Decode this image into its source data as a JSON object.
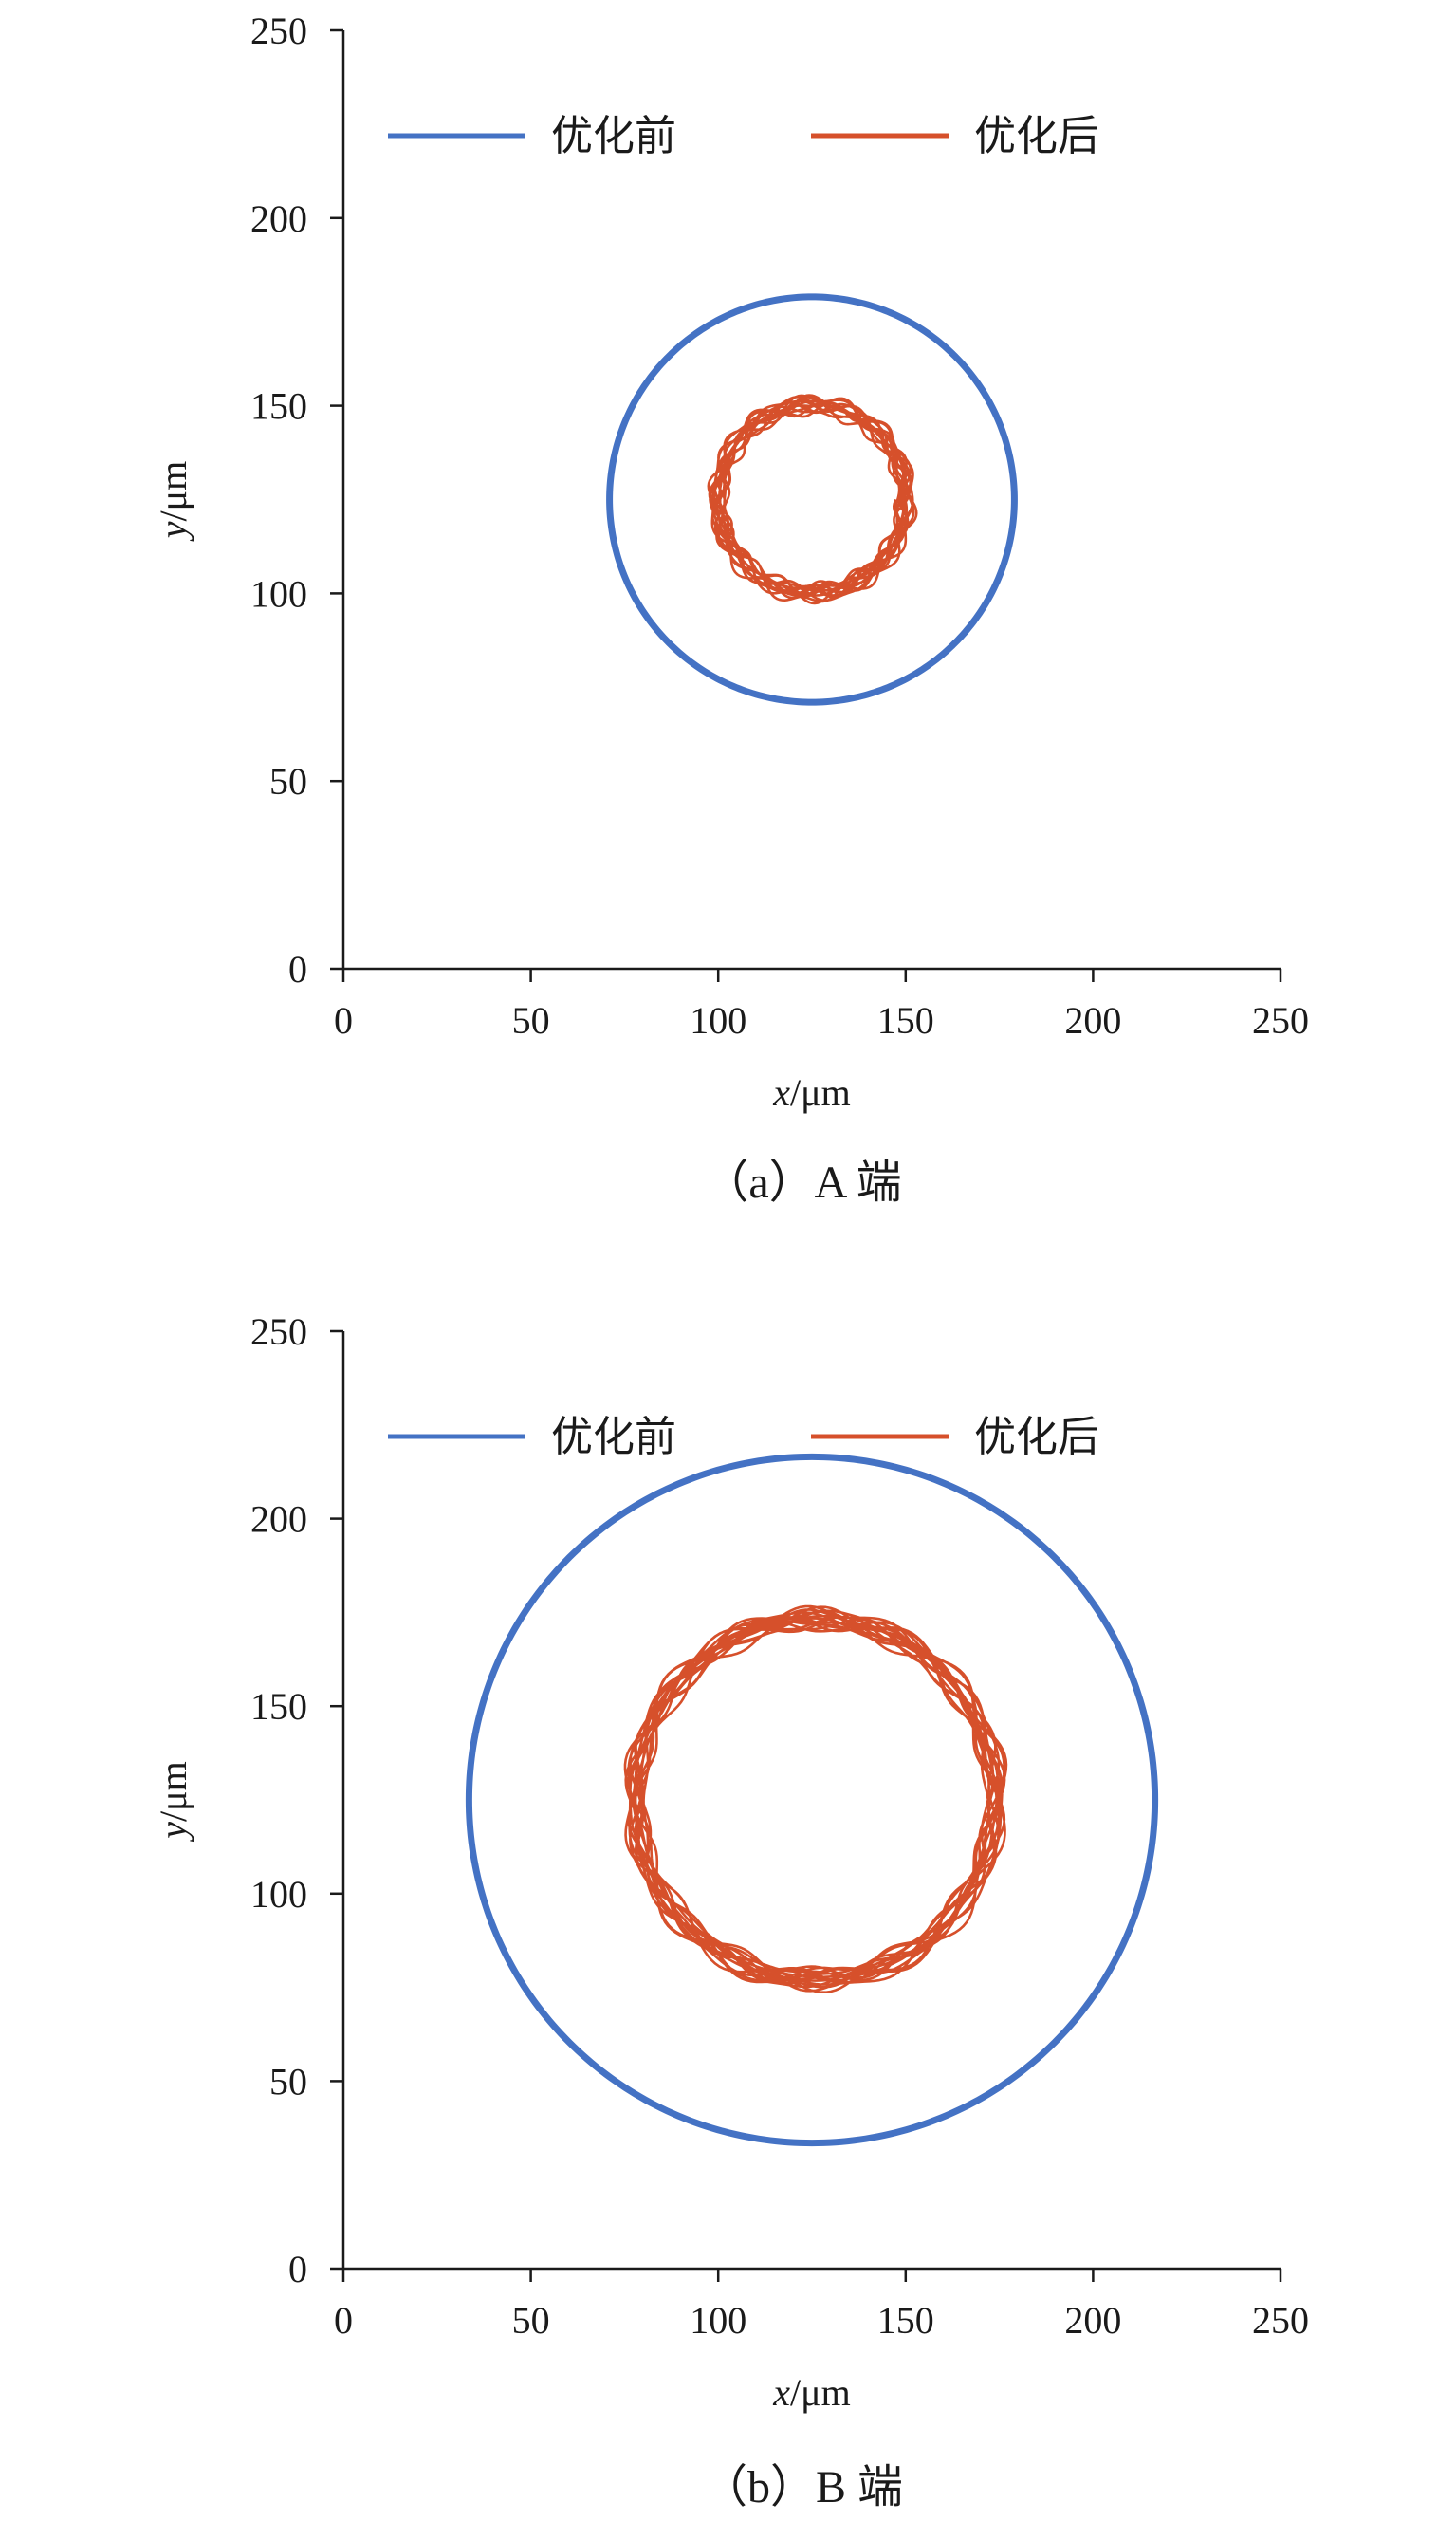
{
  "chart_data": [
    {
      "type": "line",
      "caption": "（a）A 端",
      "xlabel_var": "x",
      "xlabel_unit": "/μm",
      "ylabel_var": "y",
      "ylabel_unit": "/μm",
      "xlim": [
        0,
        250
      ],
      "ylim": [
        0,
        250
      ],
      "xticks": [
        0,
        50,
        100,
        150,
        200,
        250
      ],
      "yticks": [
        0,
        50,
        100,
        150,
        200,
        250
      ],
      "grid": false,
      "legend_position": "top",
      "series": [
        {
          "name": "优化前",
          "color": "#4472C4",
          "center": [
            125,
            125
          ],
          "radius": 54,
          "wobble": 0,
          "loops": 1
        },
        {
          "name": "优化后",
          "color": "#D6502B",
          "center": [
            125,
            125
          ],
          "radius": 25,
          "wobble": 2.5,
          "loops": 14
        }
      ]
    },
    {
      "type": "line",
      "caption": "（b）B 端",
      "xlabel_var": "x",
      "xlabel_unit": "/μm",
      "ylabel_var": "y",
      "ylabel_unit": "/μm",
      "xlim": [
        0,
        250
      ],
      "ylim": [
        0,
        250
      ],
      "xticks": [
        0,
        50,
        100,
        150,
        200,
        250
      ],
      "yticks": [
        0,
        50,
        100,
        150,
        200,
        250
      ],
      "grid": false,
      "legend_position": "top",
      "series": [
        {
          "name": "优化前",
          "color": "#4472C4",
          "center": [
            125,
            125
          ],
          "radius": 91.5,
          "wobble": 0,
          "loops": 1
        },
        {
          "name": "优化后",
          "color": "#D6502B",
          "center": [
            126,
            125
          ],
          "radius": 48,
          "wobble": 3,
          "loops": 16
        }
      ]
    }
  ]
}
